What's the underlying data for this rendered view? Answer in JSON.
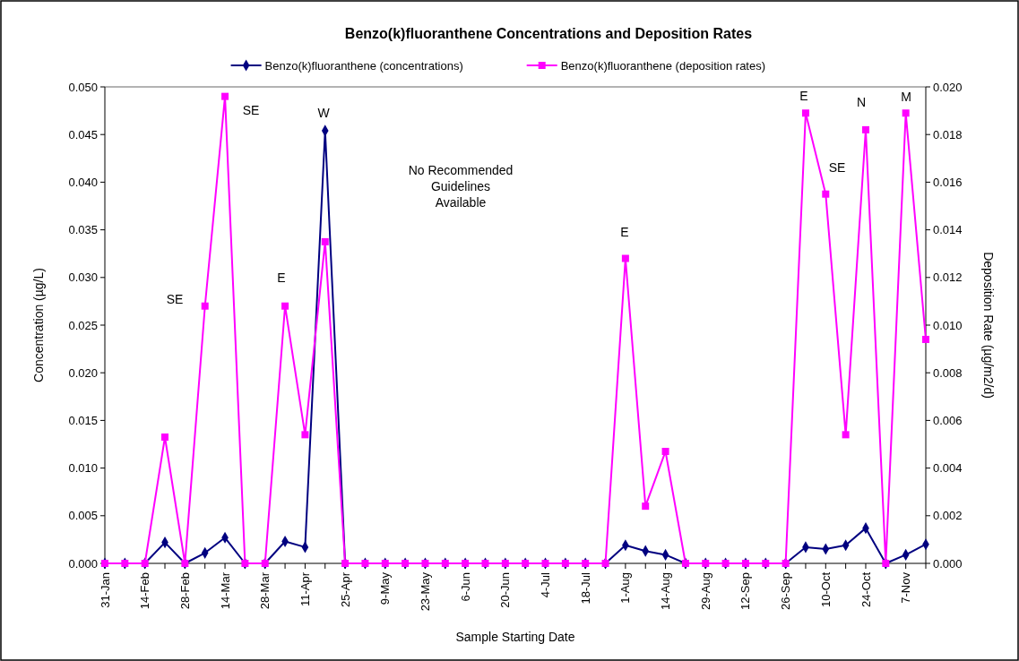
{
  "chart_data": {
    "type": "line",
    "title": "Benzo(k)fluoranthene Concentrations and Deposition Rates",
    "xlabel": "Sample Starting Date",
    "ylabel": "Concentration (µg/L)",
    "y2label": "Deposition Rate (µg/m2/d)",
    "categories": [
      "31-Jan",
      null,
      "14-Feb",
      null,
      "28-Feb",
      null,
      "14-Mar",
      null,
      "28-Mar",
      null,
      "11-Apr",
      null,
      "25-Apr",
      null,
      "9-May",
      null,
      "23-May",
      null,
      "6-Jun",
      null,
      "20-Jun",
      null,
      "4-Jul",
      null,
      "18-Jul",
      null,
      "1-Aug",
      null,
      "14-Aug",
      null,
      "29-Aug",
      null,
      "12-Sep",
      null,
      "26-Sep",
      null,
      "10-Oct",
      null,
      "24-Oct",
      null,
      "7-Nov",
      null
    ],
    "series": [
      {
        "name": "Benzo(k)fluoranthene (concentrations)",
        "color": "#000080",
        "marker": "diamond",
        "values": [
          0,
          0,
          0,
          0.0022,
          0,
          0.0011,
          0.0027,
          0,
          0,
          0.0023,
          0.0017,
          0.0454,
          0,
          0,
          0,
          0,
          0,
          0,
          0,
          0,
          0,
          0,
          0,
          0,
          0,
          0,
          0.0019,
          0.0013,
          0.0009,
          0,
          0,
          0,
          0,
          0,
          0,
          0.0017,
          0.0015,
          0.0019,
          0.0037,
          0,
          0.0009,
          0.002
        ]
      },
      {
        "name": "Benzo(k)fluoranthene (deposition rates)",
        "color": "#ff00ff",
        "marker": "square",
        "axis": "y2",
        "values": [
          0,
          0,
          0,
          0.0053,
          0,
          0.0108,
          0.0196,
          0,
          0,
          0.0108,
          0.0054,
          0.0135,
          0,
          0,
          0,
          0,
          0,
          0,
          0,
          0,
          0,
          0,
          0,
          0,
          0,
          0,
          0.0128,
          0.0024,
          0.0047,
          0,
          0,
          0,
          0,
          0,
          0,
          0.0189,
          0.0155,
          0.0054,
          0.0182,
          0,
          0.0189,
          0.0094
        ]
      }
    ],
    "ylim": [
      0,
      0.05
    ],
    "yticks": [
      {
        "value": 0,
        "label": "0.000"
      },
      {
        "value": 0.005,
        "label": "0.005"
      },
      {
        "value": 0.01,
        "label": "0.010"
      },
      {
        "value": 0.015,
        "label": "0.015"
      },
      {
        "value": 0.02,
        "label": "0.020"
      },
      {
        "value": 0.025,
        "label": "0.025"
      },
      {
        "value": 0.03,
        "label": "0.030"
      },
      {
        "value": 0.035,
        "label": "0.035"
      },
      {
        "value": 0.04,
        "label": "0.040"
      },
      {
        "value": 0.045,
        "label": "0.045"
      },
      {
        "value": 0.05,
        "label": "0.050"
      }
    ],
    "y2lim": [
      0,
      0.02
    ],
    "y2ticks": [
      {
        "value": 0,
        "label": "0.000"
      },
      {
        "value": 0.002,
        "label": "0.002"
      },
      {
        "value": 0.004,
        "label": "0.004"
      },
      {
        "value": 0.006,
        "label": "0.006"
      },
      {
        "value": 0.008,
        "label": "0.008"
      },
      {
        "value": 0.01,
        "label": "0.010"
      },
      {
        "value": 0.012,
        "label": "0.012"
      },
      {
        "value": 0.014,
        "label": "0.014"
      },
      {
        "value": 0.016,
        "label": "0.016"
      },
      {
        "value": 0.018,
        "label": "0.018"
      },
      {
        "value": 0.02,
        "label": "0.020"
      }
    ],
    "annotations": [
      "SE",
      "SE",
      "E",
      "W",
      "No Recommended Guidelines Available",
      "E",
      "E",
      "SE",
      "N",
      "M"
    ],
    "legend": "top",
    "grid": false,
    "line_style": "solid"
  }
}
